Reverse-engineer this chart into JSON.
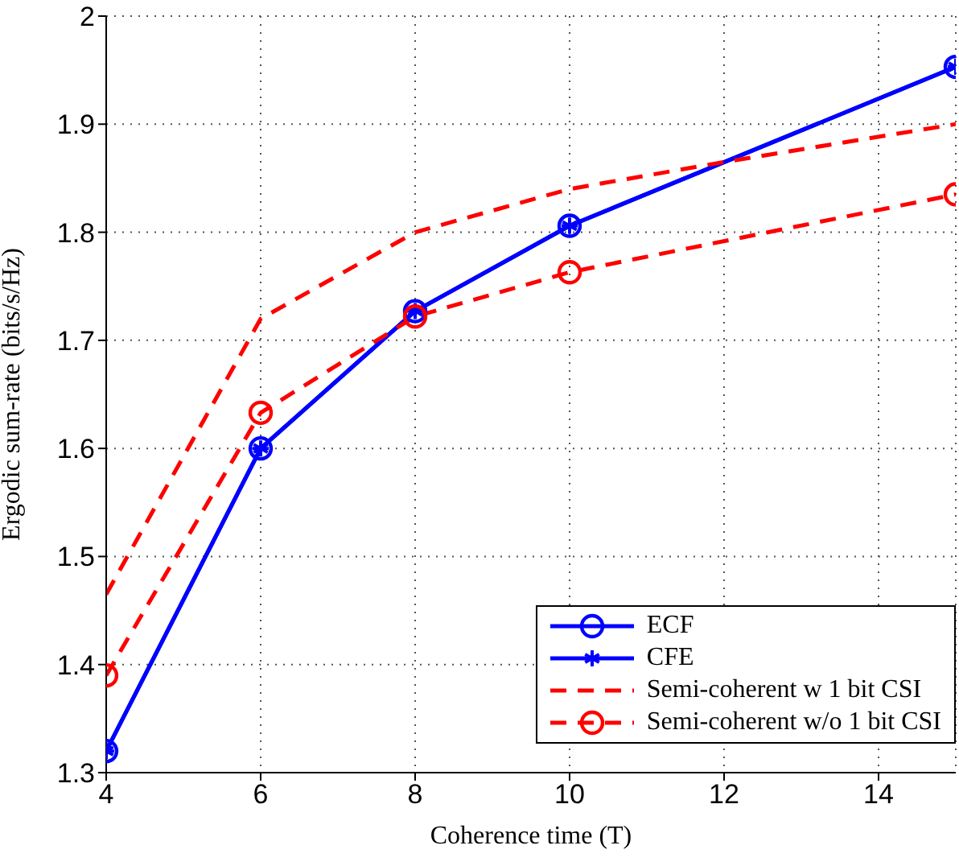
{
  "chart_data": {
    "type": "line",
    "xlabel": "Coherence time (T)",
    "ylabel": "Ergodic sum-rate (bits/s/Hz)",
    "xlim": [
      4,
      15
    ],
    "xticks": [
      4,
      6,
      8,
      10,
      12,
      14
    ],
    "ylim": [
      1.3,
      2
    ],
    "yticks": [
      1.3,
      1.4,
      1.5,
      1.6,
      1.7,
      1.8,
      1.9,
      2
    ],
    "grid": true,
    "legend": "bottom right",
    "series": [
      {
        "name": "ECF",
        "color": "#0000ff",
        "x": [
          4,
          6,
          8,
          10,
          15
        ],
        "values": [
          1.32,
          1.6,
          1.727,
          1.806,
          1.953
        ],
        "marker": "circle",
        "line_style": "solid"
      },
      {
        "name": "CFE",
        "color": "#0000ff",
        "x": [
          4,
          6,
          8,
          10,
          15
        ],
        "values": [
          1.32,
          1.6,
          1.727,
          1.806,
          1.953
        ],
        "marker": "cross",
        "line_style": "solid"
      },
      {
        "name": "Semi-coherent w 1 bit CSI",
        "color": "#ff0000",
        "x": [
          4,
          6,
          8,
          10,
          12,
          15
        ],
        "values": [
          1.465,
          1.72,
          1.8,
          1.84,
          1.865,
          1.9
        ],
        "marker": "none",
        "line_style": "dashed"
      },
      {
        "name": "Semi-coherent w/o 1 bit CSI",
        "color": "#ff0000",
        "x": [
          4,
          6,
          8,
          10,
          15
        ],
        "values": [
          1.39,
          1.633,
          1.722,
          1.763,
          1.835
        ],
        "marker": "circle",
        "line_style": "dashed"
      }
    ]
  }
}
